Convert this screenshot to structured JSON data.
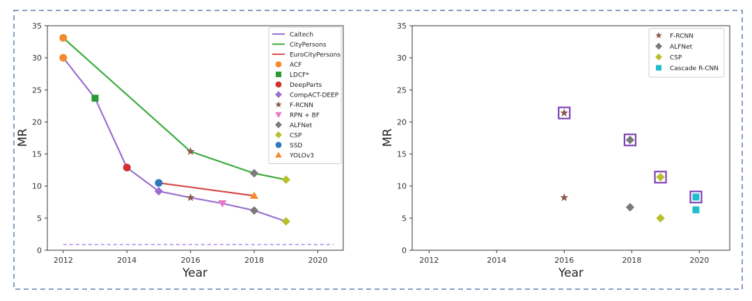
{
  "colors": {
    "frame": "#5a7fae",
    "Caltech": "#9a6fd1",
    "CityPersons": "#3cac3c",
    "EuroCityPersons": "#d84c4c",
    "ACF": "#f58a2c",
    "LDCF*": "#2b9a35",
    "DeepParts": "#d42e2e",
    "CompACT-DEEP": "#9a6fd1",
    "F-RCNN": "#8c5a4c",
    "RPN + BF": "#ea76c8",
    "ALFNet": "#7a7a7a",
    "CSP": "#b8bf2c",
    "SSD": "#2f78b8",
    "YOLOv3": "#f58a2c",
    "Cascade R-CNN": "#22bccf",
    "highlight": "#7b3fb5",
    "reference": "#b08ef0"
  },
  "chart_data": [
    {
      "type": "line",
      "xlabel": "Year",
      "ylabel": "MR",
      "xlim": [
        2011.5,
        2020.8
      ],
      "ylim": [
        0,
        35
      ],
      "xticks": [
        "2012",
        "2014",
        "2016",
        "2018",
        "2020"
      ],
      "yticks": [
        "0",
        "5",
        "10",
        "15",
        "20",
        "25",
        "30",
        "35"
      ],
      "grid": false,
      "legend_position": "top-right",
      "legend": [
        {
          "label": "Caltech",
          "kind": "line"
        },
        {
          "label": "CityPersons",
          "kind": "line"
        },
        {
          "label": "EuroCityPersons",
          "kind": "line"
        },
        {
          "label": "ACF",
          "kind": "circle"
        },
        {
          "label": "LDCF*",
          "kind": "square"
        },
        {
          "label": "DeepParts",
          "kind": "circle"
        },
        {
          "label": "CompACT-DEEP",
          "kind": "diamond"
        },
        {
          "label": "F-RCNN",
          "kind": "star"
        },
        {
          "label": "RPN + BF",
          "kind": "triangle-down"
        },
        {
          "label": "ALFNet",
          "kind": "diamond"
        },
        {
          "label": "CSP",
          "kind": "diamond"
        },
        {
          "label": "SSD",
          "kind": "circle"
        },
        {
          "label": "YOLOv3",
          "kind": "triangle-up"
        }
      ],
      "series": [
        {
          "name": "Caltech",
          "x": [
            2012,
            2013,
            2014,
            2015,
            2016,
            2017,
            2018,
            2019
          ],
          "y": [
            30.0,
            23.7,
            12.9,
            9.2,
            8.2,
            7.3,
            6.2,
            4.5
          ]
        },
        {
          "name": "CityPersons",
          "x": [
            2012,
            2016,
            2018,
            2019
          ],
          "y": [
            33.1,
            15.4,
            12.0,
            11.0
          ]
        },
        {
          "name": "EuroCityPersons",
          "x": [
            2015,
            2018
          ],
          "y": [
            10.5,
            8.5
          ]
        }
      ],
      "reference_line": {
        "x": [
          2012,
          2020.5
        ],
        "y": [
          0.9,
          0.9
        ]
      },
      "points": [
        {
          "method": "ACF",
          "x": 2012,
          "y": 30.0,
          "marker": "circle"
        },
        {
          "method": "ACF",
          "x": 2012,
          "y": 33.1,
          "marker": "circle"
        },
        {
          "method": "LDCF*",
          "x": 2013,
          "y": 23.7,
          "marker": "square"
        },
        {
          "method": "DeepParts",
          "x": 2014,
          "y": 12.9,
          "marker": "circle"
        },
        {
          "method": "CompACT-DEEP",
          "x": 2015,
          "y": 9.2,
          "marker": "diamond"
        },
        {
          "method": "SSD",
          "x": 2015,
          "y": 10.5,
          "marker": "circle"
        },
        {
          "method": "F-RCNN",
          "x": 2016,
          "y": 8.2,
          "marker": "star"
        },
        {
          "method": "F-RCNN",
          "x": 2016,
          "y": 15.4,
          "marker": "star"
        },
        {
          "method": "RPN + BF",
          "x": 2017,
          "y": 7.3,
          "marker": "triangle-down"
        },
        {
          "method": "ALFNet",
          "x": 2018,
          "y": 6.2,
          "marker": "diamond"
        },
        {
          "method": "ALFNet",
          "x": 2018,
          "y": 12.0,
          "marker": "diamond"
        },
        {
          "method": "YOLOv3",
          "x": 2018,
          "y": 8.5,
          "marker": "triangle-up"
        },
        {
          "method": "CSP",
          "x": 2019,
          "y": 4.5,
          "marker": "diamond"
        },
        {
          "method": "CSP",
          "x": 2019,
          "y": 11.0,
          "marker": "diamond"
        }
      ]
    },
    {
      "type": "scatter",
      "xlabel": "Year",
      "ylabel": "MR",
      "xlim": [
        2011.5,
        2020.9
      ],
      "ylim": [
        0,
        35
      ],
      "xticks": [
        "2012",
        "2014",
        "2016",
        "2018",
        "2020"
      ],
      "yticks": [
        "0",
        "5",
        "10",
        "15",
        "20",
        "25",
        "30",
        "35"
      ],
      "grid": false,
      "legend_position": "top-right",
      "legend": [
        {
          "label": "F-RCNN",
          "kind": "star"
        },
        {
          "label": "ALFNet",
          "kind": "diamond"
        },
        {
          "label": "CSP",
          "kind": "diamond"
        },
        {
          "label": "Cascade R-CNN",
          "kind": "square"
        }
      ],
      "points": [
        {
          "method": "F-RCNN",
          "x": 2016,
          "y": 8.2,
          "marker": "star",
          "highlighted": false
        },
        {
          "method": "F-RCNN",
          "x": 2016,
          "y": 21.4,
          "marker": "star",
          "highlighted": true
        },
        {
          "method": "ALFNet",
          "x": 2017.95,
          "y": 6.7,
          "marker": "diamond",
          "highlighted": false
        },
        {
          "method": "ALFNet",
          "x": 2017.95,
          "y": 17.2,
          "marker": "diamond",
          "highlighted": true
        },
        {
          "method": "CSP",
          "x": 2018.85,
          "y": 5.0,
          "marker": "diamond",
          "highlighted": false
        },
        {
          "method": "CSP",
          "x": 2018.85,
          "y": 11.4,
          "marker": "diamond",
          "highlighted": true
        },
        {
          "method": "Cascade R-CNN",
          "x": 2019.9,
          "y": 6.3,
          "marker": "square",
          "highlighted": false
        },
        {
          "method": "Cascade R-CNN",
          "x": 2019.9,
          "y": 8.3,
          "marker": "square",
          "highlighted": true
        }
      ]
    }
  ]
}
